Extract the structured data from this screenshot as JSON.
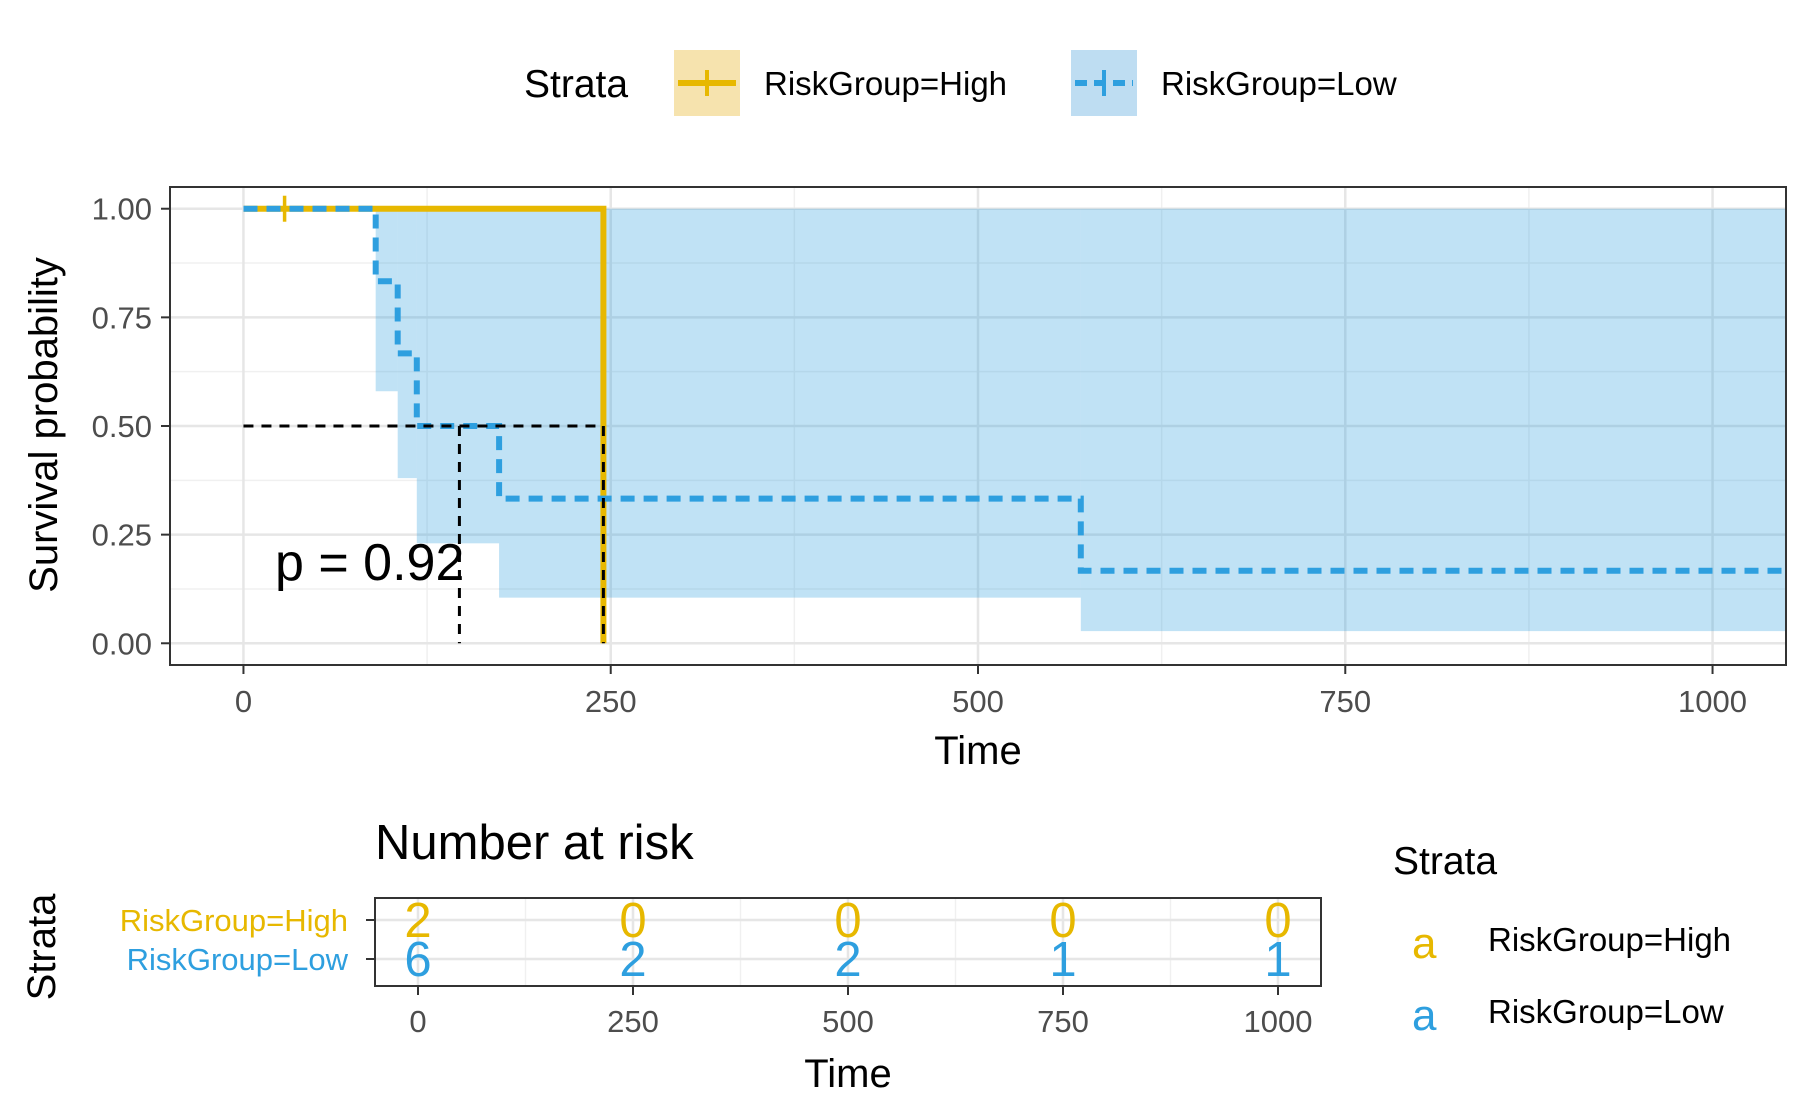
{
  "chart_data": {
    "type": "line",
    "subtype": "kaplan-meier",
    "legend": {
      "title": "Strata",
      "placement": "top",
      "entries": [
        "RiskGroup=High",
        "RiskGroup=Low"
      ]
    },
    "xlabel": "Time",
    "ylabel": "Survival probability",
    "xlim": [
      -50,
      1050
    ],
    "ylim": [
      -0.05,
      1.05
    ],
    "x_ticks": [
      0,
      250,
      500,
      750,
      1000
    ],
    "y_ticks": [
      0,
      0.25,
      0.5,
      0.75,
      1
    ],
    "y_tick_labels": [
      "0.00",
      "0.25",
      "0.50",
      "0.75",
      "1.00"
    ],
    "grid": true,
    "pvalue_text": "p = 0.92",
    "series": [
      {
        "name": "RiskGroup=High",
        "color": "#E7B800",
        "line_style": "solid",
        "steps": [
          [
            0,
            1.0
          ],
          [
            245,
            1.0
          ],
          [
            245,
            0.0
          ]
        ],
        "censor": [
          [
            28,
            1.0
          ]
        ],
        "ci": [
          [
            0,
            245,
            1.0,
            1.0
          ]
        ]
      },
      {
        "name": "RiskGroup=Low",
        "color": "#2E9FDF",
        "line_style": "dashed",
        "steps": [
          [
            0,
            1.0
          ],
          [
            90,
            1.0
          ],
          [
            90,
            0.833
          ],
          [
            105,
            0.833
          ],
          [
            105,
            0.667
          ],
          [
            118,
            0.667
          ],
          [
            118,
            0.5
          ],
          [
            174,
            0.5
          ],
          [
            174,
            0.333
          ],
          [
            570,
            0.333
          ],
          [
            570,
            0.167
          ],
          [
            1050,
            0.167
          ]
        ],
        "censor": [],
        "ci": [
          [
            0,
            90,
            1.0,
            1.0
          ],
          [
            90,
            105,
            1.0,
            0.58
          ],
          [
            105,
            118,
            1.0,
            0.38
          ],
          [
            118,
            174,
            1.0,
            0.23
          ],
          [
            174,
            570,
            1.0,
            0.105
          ],
          [
            570,
            1050,
            1.0,
            0.028
          ]
        ]
      }
    ],
    "median_lines": [
      {
        "x": 147,
        "y": 0.5
      },
      {
        "x": 245,
        "y": 0.5
      }
    ],
    "risk_table": {
      "title": "Number at risk",
      "ylabel": "Strata",
      "xlabel": "Time",
      "times": [
        0,
        250,
        500,
        750,
        1000
      ],
      "x_tick_labels": [
        "0",
        "250",
        "500",
        "750",
        "1000"
      ],
      "xlim": [
        -50,
        1050
      ],
      "rows": [
        {
          "name": "RiskGroup=High",
          "color": "#E7B800",
          "counts": [
            2,
            0,
            0,
            0,
            0
          ]
        },
        {
          "name": "RiskGroup=Low",
          "color": "#2E9FDF",
          "counts": [
            6,
            2,
            2,
            1,
            1
          ]
        }
      ],
      "legend": {
        "title": "Strata",
        "key_glyph": "a",
        "entries": [
          "RiskGroup=High",
          "RiskGroup=Low"
        ]
      }
    }
  }
}
